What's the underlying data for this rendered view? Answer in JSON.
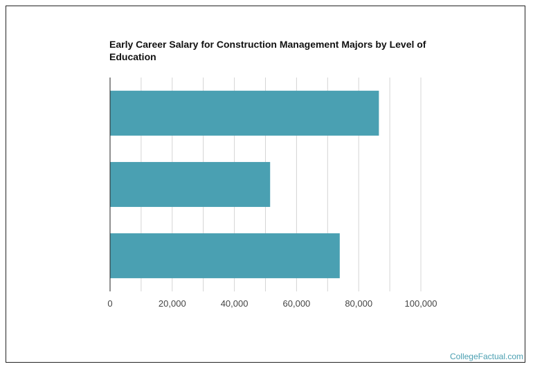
{
  "chart_data": {
    "type": "bar",
    "orientation": "horizontal",
    "title": "Early Career Salary for Construction Management Majors by Level of Education",
    "categories": [
      "",
      "",
      ""
    ],
    "values": [
      86500,
      51500,
      73900
    ],
    "xlim": [
      0,
      100000
    ],
    "xticks": [
      0,
      20000,
      40000,
      60000,
      80000,
      100000
    ],
    "xtick_labels": [
      "0",
      "20,000",
      "40,000",
      "60,000",
      "80,000",
      "100,000"
    ],
    "xlabel": "",
    "ylabel": "",
    "grid": true,
    "bar_color": "#4aa0b2",
    "grid_color": "#d4d4d4"
  },
  "footer": {
    "credit": "CollegeFactual.com"
  }
}
